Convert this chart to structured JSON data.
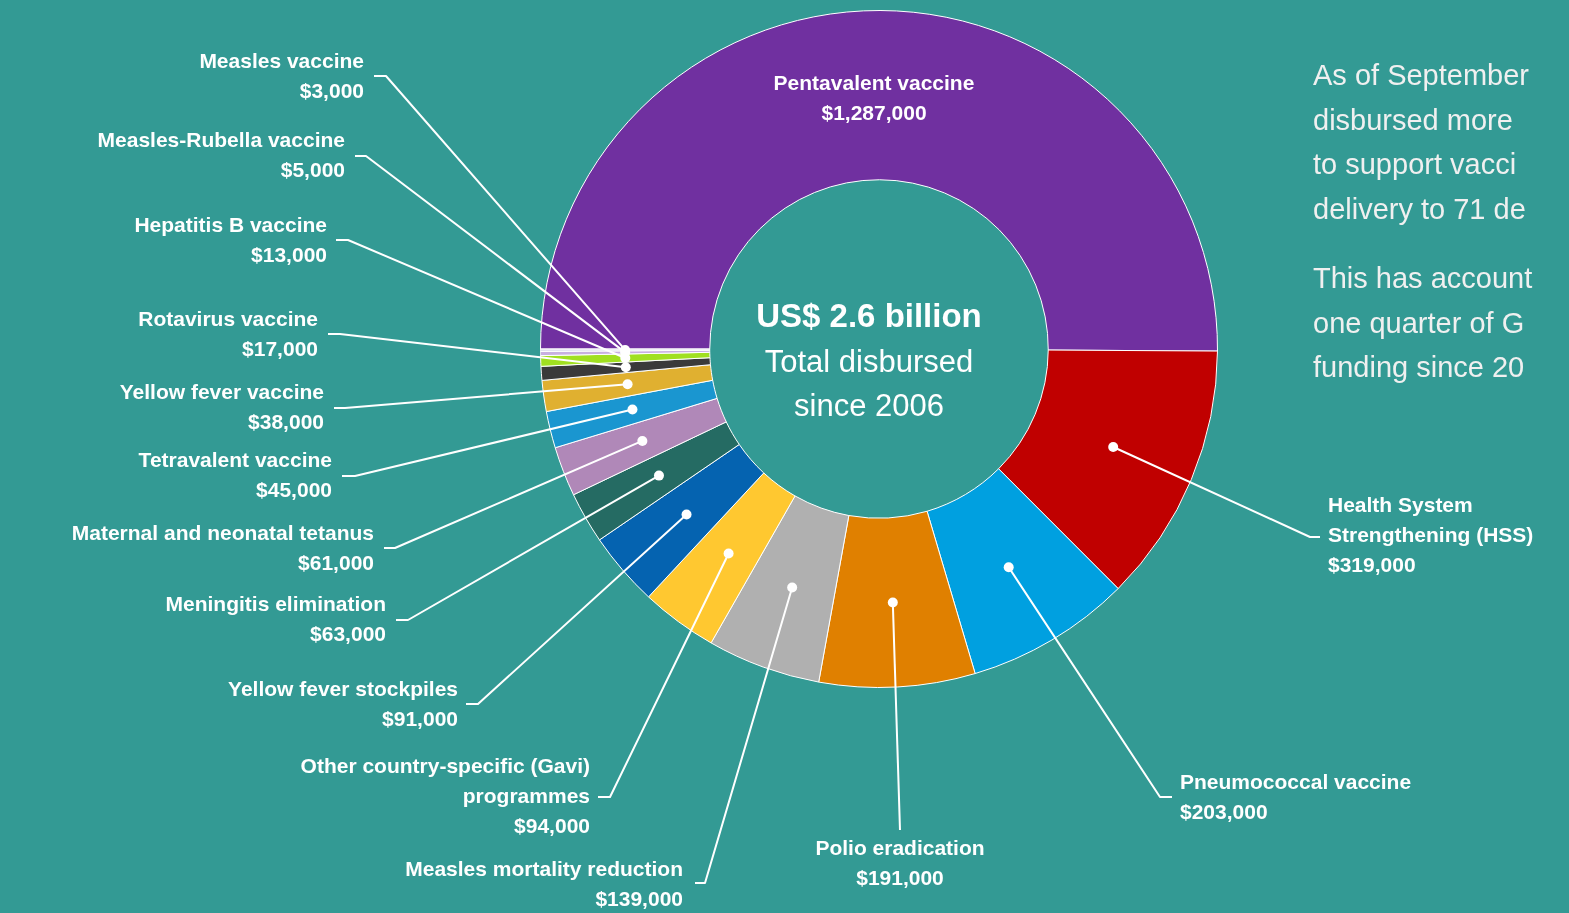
{
  "chart_data": {
    "type": "donut",
    "categories": [
      "Pentavalent vaccine",
      "Health System Strengthening (HSS)",
      "Pneumococcal vaccine",
      "Polio eradication",
      "Measles mortality reduction",
      "Other country-specific (Gavi) programmes",
      "Yellow fever stockpiles",
      "Meningitis elimination",
      "Maternal and neonatal tetanus",
      "Tetravalent vaccine",
      "Yellow fever vaccine",
      "Rotavirus vaccine",
      "Hepatitis B vaccine",
      "Measles-Rubella vaccine",
      "Measles vaccine"
    ],
    "values": [
      1287000,
      319000,
      203000,
      191000,
      139000,
      94000,
      91000,
      63000,
      61000,
      45000,
      38000,
      17000,
      13000,
      5000,
      3000
    ],
    "value_labels": [
      "$1,287,000",
      "$319,000",
      "$203,000",
      "$191,000",
      "$139,000",
      "$94,000",
      "$91,000",
      "$63,000",
      "$61,000",
      "$45,000",
      "$38,000",
      "$17,000",
      "$13,000",
      "$5,000",
      "$3,000"
    ],
    "colors": [
      "#7030a0",
      "#c00000",
      "#00a0e0",
      "#e08000",
      "#b0b0b0",
      "#ffc830",
      "#0563b0",
      "#256b63",
      "#b088b8",
      "#1a96d0",
      "#e0b030",
      "#3a3a3a",
      "#a0e020",
      "#c8b0e0",
      "#e0e0f0"
    ],
    "legend": false,
    "annotations": [
      "US$ 2.6 billion",
      "Total disbursed since 2006",
      "As of September\ndisbursed more\nto support vacci\ndelivery to 71 de",
      "This has account\none quarter of G\nfunding since 20"
    ]
  }
}
